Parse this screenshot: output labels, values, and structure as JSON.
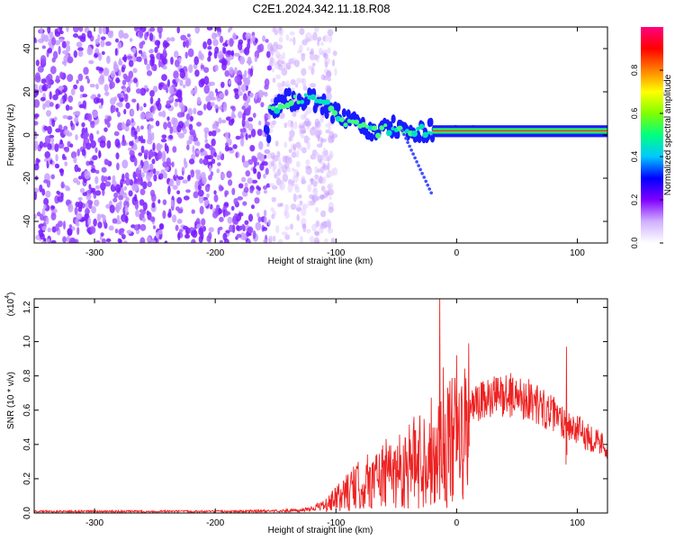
{
  "title": "C2E1.2024.342.11.18.R08",
  "chart_data": [
    {
      "type": "heatmap",
      "panel": "top",
      "xlabel": "Height of straight line (km)",
      "ylabel": "Frequency (Hz)",
      "xlim": [
        -350,
        125
      ],
      "ylim": [
        -50,
        50
      ],
      "xticks": [
        -300,
        -200,
        -100,
        0,
        100
      ],
      "yticks": [
        -40,
        -20,
        0,
        20,
        40
      ],
      "colorbar": {
        "label": "Normalized spectral amplitude",
        "range": [
          0,
          1
        ],
        "ticks": [
          "0.0",
          "0.2",
          "0.4",
          "0.6",
          "0.8"
        ],
        "colors": [
          "#ffffff",
          "#d0b0ff",
          "#8000ff",
          "#0000ff",
          "#00c8ff",
          "#00ff80",
          "#80ff00",
          "#ffff00",
          "#ff8000",
          "#ff0000",
          "#ff0080"
        ]
      },
      "ridge": {
        "description": "frequency track",
        "points": [
          [
            -155,
            12
          ],
          [
            -140,
            16
          ],
          [
            -125,
            17
          ],
          [
            -110,
            14
          ],
          [
            -95,
            8
          ],
          [
            -80,
            4
          ],
          [
            -65,
            1
          ],
          [
            -50,
            4
          ],
          [
            -40,
            0
          ],
          [
            -30,
            2
          ],
          [
            -15,
            2
          ],
          [
            0,
            3
          ],
          [
            20,
            2
          ],
          [
            60,
            2
          ],
          [
            90,
            2
          ],
          [
            125,
            2
          ]
        ]
      },
      "noise_region_x": [
        -350,
        -150
      ]
    },
    {
      "type": "line",
      "panel": "bottom",
      "xlabel": "Height of straight line (km)",
      "ylabel": "SNR (10 * v/v)",
      "yscale_label": "(x10",
      "yscale_exp": "4",
      "yscale_close": ")",
      "xlim": [
        -350,
        125
      ],
      "ylim": [
        0,
        1.25
      ],
      "xticks": [
        -300,
        -200,
        -100,
        0,
        100
      ],
      "yticks": [
        "0.0",
        "0.2",
        "0.4",
        "0.6",
        "0.8",
        "1.0",
        "1.2"
      ],
      "color": "#ee2222",
      "envelope": [
        [
          -350,
          0.01
        ],
        [
          -200,
          0.01
        ],
        [
          -130,
          0.015
        ],
        [
          -110,
          0.05
        ],
        [
          -90,
          0.18
        ],
        [
          -70,
          0.28
        ],
        [
          -50,
          0.35
        ],
        [
          -30,
          0.45
        ],
        [
          -15,
          0.55
        ],
        [
          0,
          0.6
        ],
        [
          20,
          0.7
        ],
        [
          40,
          0.75
        ],
        [
          60,
          0.72
        ],
        [
          80,
          0.62
        ],
        [
          100,
          0.52
        ],
        [
          125,
          0.42
        ]
      ],
      "spikes": [
        [
          -14,
          1.25
        ],
        [
          -11,
          0.85
        ],
        [
          0,
          0.92
        ],
        [
          10,
          0.99
        ],
        [
          91,
          0.97
        ]
      ]
    }
  ]
}
